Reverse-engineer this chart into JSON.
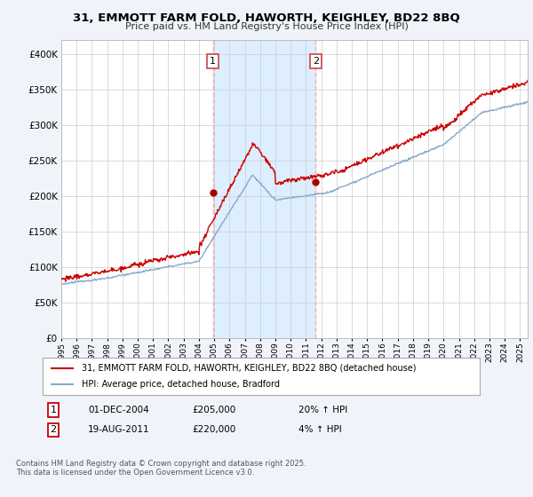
{
  "title": "31, EMMOTT FARM FOLD, HAWORTH, KEIGHLEY, BD22 8BQ",
  "subtitle": "Price paid vs. HM Land Registry's House Price Index (HPI)",
  "ylim": [
    0,
    420000
  ],
  "yticks": [
    0,
    50000,
    100000,
    150000,
    200000,
    250000,
    300000,
    350000,
    400000
  ],
  "sale1": {
    "date_num": 2004.92,
    "price": 205000,
    "label": "1",
    "date_str": "01-DEC-2004",
    "hpi_pct": "20% ↑ HPI"
  },
  "sale2": {
    "date_num": 2011.63,
    "price": 220000,
    "label": "2",
    "date_str": "19-AUG-2011",
    "hpi_pct": "4% ↑ HPI"
  },
  "vline_color": "#ffaaaa",
  "sale_marker_color": "#aa0000",
  "hpi_color": "#88aacc",
  "price_color": "#cc0000",
  "legend_label_price": "31, EMMOTT FARM FOLD, HAWORTH, KEIGHLEY, BD22 8BQ (detached house)",
  "legend_label_hpi": "HPI: Average price, detached house, Bradford",
  "footnote": "Contains HM Land Registry data © Crown copyright and database right 2025.\nThis data is licensed under the Open Government Licence v3.0.",
  "background_color": "#f0f4fa",
  "plot_bg_color": "#ffffff",
  "grid_color": "#cccccc",
  "span_color": "#ddeeff"
}
